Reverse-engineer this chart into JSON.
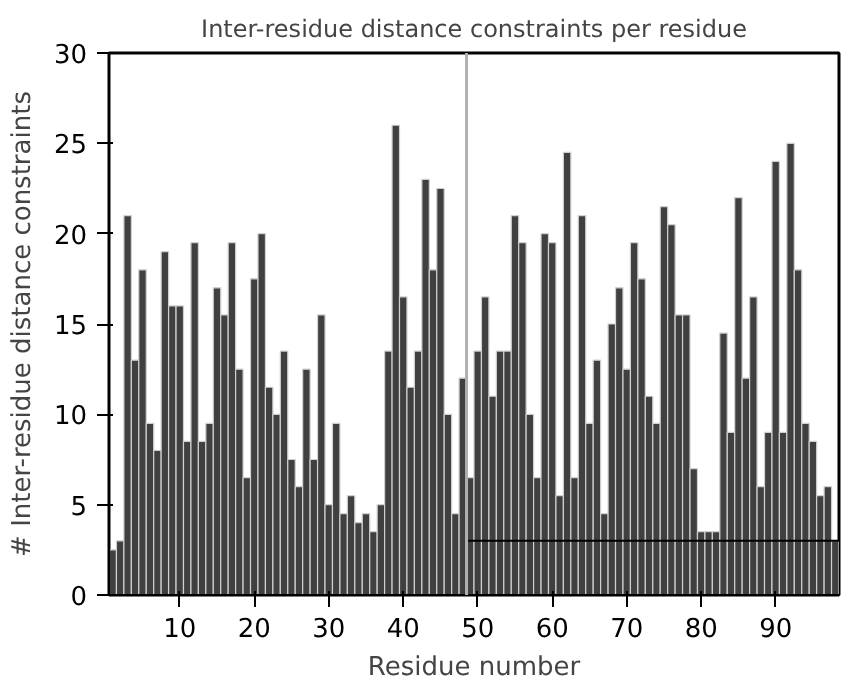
{
  "chart_data": {
    "type": "bar",
    "title": "Inter-residue distance constraints per residue",
    "xlabel": "Residue number",
    "ylabel": "# Inter-residue distance constraints",
    "x": [
      1,
      2,
      3,
      4,
      5,
      6,
      7,
      8,
      9,
      10,
      11,
      12,
      13,
      14,
      15,
      16,
      17,
      18,
      19,
      20,
      21,
      22,
      23,
      24,
      25,
      26,
      27,
      28,
      29,
      30,
      31,
      32,
      33,
      34,
      35,
      36,
      37,
      38,
      39,
      40,
      41,
      42,
      43,
      44,
      45,
      46,
      47,
      48,
      49,
      50,
      51,
      52,
      53,
      54,
      55,
      56,
      57,
      58,
      59,
      60,
      61,
      62,
      63,
      64,
      65,
      66,
      67,
      68,
      69,
      70,
      71,
      72,
      73,
      74,
      75,
      76,
      77,
      78,
      79,
      80,
      81,
      82,
      83,
      84,
      85,
      86,
      87,
      88,
      89,
      90,
      91,
      92,
      93,
      94,
      95,
      96,
      97,
      98
    ],
    "series": [
      {
        "color": "#404040",
        "values": [
          2.5,
          3,
          21,
          13,
          18,
          9.5,
          8,
          19,
          16,
          16,
          8.5,
          19.5,
          8.5,
          9.5,
          17,
          15.5,
          19.5,
          12.5,
          6.5,
          17.5,
          20,
          11.5,
          10,
          13.5,
          7.5,
          6,
          12.5,
          7.5,
          15.5,
          5,
          9.5,
          4.5,
          5.5,
          4,
          4.5,
          3.5,
          5,
          13.5,
          26,
          16.5,
          11.5,
          13.5,
          23,
          18,
          22.5,
          10,
          4.5,
          12,
          6.5,
          13.5,
          16.5,
          11,
          13.5,
          13.5,
          21,
          19.5,
          10,
          6.5,
          20,
          19.5,
          5.5,
          24.5,
          6.5,
          21,
          9.5,
          13,
          4.5,
          15,
          17,
          12.5,
          19.5,
          17.5,
          11,
          9.5,
          21.5,
          20.5,
          15.5,
          15.5,
          7,
          3.5,
          3.5,
          3.5,
          14.5,
          9,
          22,
          12,
          16.5,
          6,
          9,
          24,
          9,
          25,
          18,
          9.5,
          8.5,
          5.5,
          6,
          3
        ]
      },
      {
        "type": "line",
        "color": "#000000",
        "x": [
          48.5,
          98.5
        ],
        "values": [
          3,
          3
        ]
      }
    ],
    "ref_lines": [
      {
        "axis": "x",
        "value": 48.5,
        "color": "#b0b0b0"
      }
    ],
    "xlim": [
      0.5,
      98.5
    ],
    "ylim": [
      0,
      30
    ],
    "xticks": [
      10,
      20,
      30,
      40,
      50,
      60,
      70,
      80,
      90
    ],
    "yticks": [
      0,
      5,
      10,
      15,
      20,
      25,
      30
    ],
    "grid": false
  }
}
